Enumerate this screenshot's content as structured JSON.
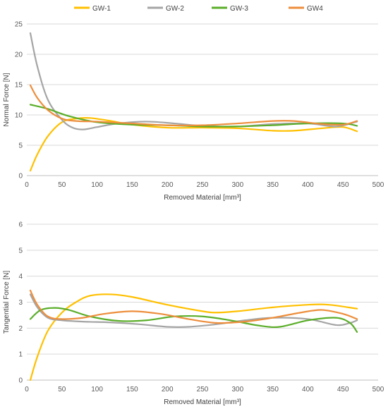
{
  "legend": [
    {
      "name": "GW-1",
      "color": "#FFC000"
    },
    {
      "name": "GW-2",
      "color": "#A5A5A5"
    },
    {
      "name": "GW-3",
      "color": "#5BAE2A"
    },
    {
      "name": "GW4",
      "color": "#ED8E3C"
    }
  ],
  "chart_data": [
    {
      "type": "line",
      "title": "",
      "xlabel": "Removed Material [mm³]",
      "ylabel": "Normal Force [N]",
      "xlim": [
        0,
        500
      ],
      "ylim": [
        0,
        25
      ],
      "xticks": [
        0,
        50,
        100,
        150,
        200,
        250,
        300,
        350,
        400,
        450,
        500
      ],
      "yticks": [
        0,
        5,
        10,
        15,
        20,
        25
      ],
      "grid": "horizontal",
      "legend_position": "top",
      "series": [
        {
          "name": "GW-1",
          "color": "#FFC000",
          "x": [
            5,
            15,
            30,
            50,
            70,
            90,
            120,
            150,
            200,
            250,
            300,
            350,
            380,
            420,
            450,
            470
          ],
          "y": [
            0.8,
            3.5,
            6.5,
            8.8,
            9.4,
            9.5,
            9.0,
            8.4,
            7.9,
            7.9,
            7.8,
            7.4,
            7.4,
            7.8,
            8.0,
            7.3
          ]
        },
        {
          "name": "GW-2",
          "color": "#A5A5A5",
          "x": [
            5,
            15,
            30,
            50,
            65,
            80,
            100,
            130,
            170,
            210,
            250,
            300,
            350,
            400,
            440,
            470
          ],
          "y": [
            23.5,
            18.0,
            12.5,
            9.2,
            7.9,
            7.6,
            8.0,
            8.6,
            8.9,
            8.6,
            8.2,
            8.1,
            8.5,
            8.6,
            8.1,
            8.9
          ]
        },
        {
          "name": "GW-3",
          "color": "#5BAE2A",
          "x": [
            5,
            30,
            60,
            100,
            150,
            200,
            250,
            300,
            350,
            400,
            450,
            470
          ],
          "y": [
            11.7,
            11.0,
            9.8,
            8.8,
            8.4,
            8.3,
            8.1,
            8.1,
            8.3,
            8.6,
            8.6,
            8.2
          ]
        },
        {
          "name": "GW4",
          "color": "#ED8E3C",
          "x": [
            5,
            15,
            30,
            50,
            70,
            100,
            150,
            200,
            250,
            300,
            350,
            380,
            420,
            450,
            470
          ],
          "y": [
            14.9,
            12.8,
            10.8,
            9.4,
            9.0,
            8.9,
            8.6,
            8.3,
            8.3,
            8.6,
            9.0,
            9.0,
            8.5,
            8.4,
            9.0
          ]
        }
      ]
    },
    {
      "type": "line",
      "title": "",
      "xlabel": "Removed Material [mm³]",
      "ylabel": "Tangential Force [N]",
      "xlim": [
        0,
        500
      ],
      "ylim": [
        0,
        6
      ],
      "xticks": [
        0,
        50,
        100,
        150,
        200,
        250,
        300,
        350,
        400,
        450,
        500
      ],
      "yticks": [
        0,
        1,
        2,
        3,
        4,
        5,
        6
      ],
      "grid": "horizontal",
      "series": [
        {
          "name": "GW-1",
          "color": "#FFC000",
          "x": [
            5,
            15,
            30,
            50,
            70,
            90,
            120,
            150,
            200,
            250,
            270,
            300,
            350,
            400,
            430,
            470
          ],
          "y": [
            0.0,
            0.9,
            1.9,
            2.6,
            3.0,
            3.25,
            3.3,
            3.2,
            2.9,
            2.65,
            2.6,
            2.65,
            2.8,
            2.9,
            2.9,
            2.75
          ]
        },
        {
          "name": "GW-2",
          "color": "#A5A5A5",
          "x": [
            5,
            15,
            30,
            50,
            80,
            120,
            160,
            200,
            230,
            270,
            310,
            350,
            400,
            440,
            460,
            470
          ],
          "y": [
            3.3,
            2.8,
            2.4,
            2.3,
            2.25,
            2.22,
            2.15,
            2.05,
            2.05,
            2.15,
            2.3,
            2.4,
            2.35,
            2.12,
            2.2,
            2.3
          ]
        },
        {
          "name": "GW-3",
          "color": "#5BAE2A",
          "x": [
            5,
            20,
            40,
            60,
            90,
            130,
            170,
            210,
            250,
            290,
            330,
            360,
            400,
            440,
            460,
            470
          ],
          "y": [
            2.35,
            2.7,
            2.78,
            2.7,
            2.45,
            2.28,
            2.3,
            2.45,
            2.45,
            2.3,
            2.1,
            2.05,
            2.3,
            2.4,
            2.2,
            1.85
          ]
        },
        {
          "name": "GW4",
          "color": "#ED8E3C",
          "x": [
            5,
            15,
            30,
            50,
            80,
            110,
            150,
            190,
            230,
            270,
            310,
            350,
            390,
            420,
            450,
            470
          ],
          "y": [
            3.45,
            2.9,
            2.45,
            2.35,
            2.4,
            2.55,
            2.65,
            2.55,
            2.35,
            2.2,
            2.25,
            2.4,
            2.6,
            2.7,
            2.55,
            2.35
          ]
        }
      ]
    }
  ]
}
